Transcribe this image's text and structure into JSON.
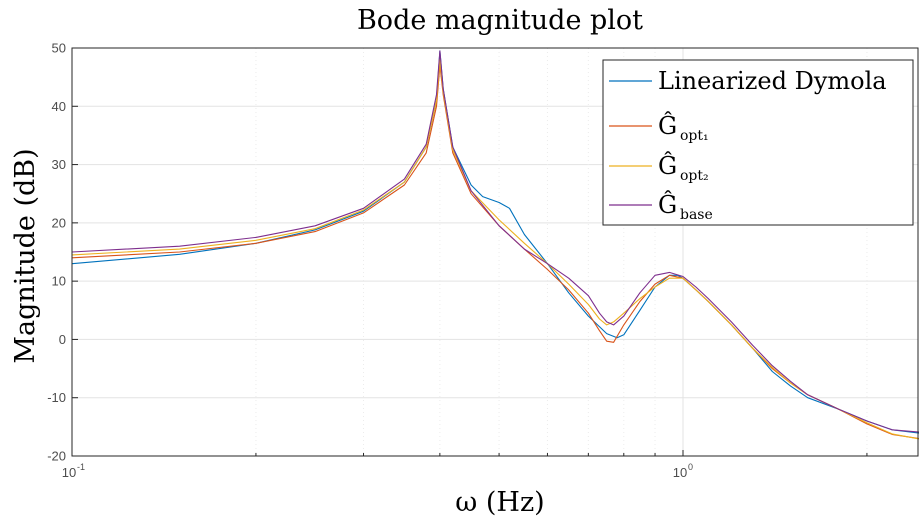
{
  "chart_data": {
    "type": "line",
    "title": "Bode magnitude plot",
    "xlabel": "ω (Hz)",
    "ylabel": "Magnitude (dB)",
    "xscale": "log",
    "xlim": [
      0.1,
      2.5
    ],
    "ylim": [
      -20,
      50
    ],
    "yticks": [
      -20,
      -10,
      0,
      10,
      20,
      30,
      40,
      50
    ],
    "ytick_labels": [
      "-20",
      "-10",
      "0",
      "10",
      "20",
      "30",
      "40",
      "50"
    ],
    "xticks": [
      {
        "value": 0.1,
        "base": "10",
        "exp": "-1"
      },
      {
        "value": 1.0,
        "base": "10",
        "exp": "0"
      }
    ],
    "grid": true,
    "legend_position": "top-right",
    "series": [
      {
        "name": "Linearized Dymola",
        "color": "#0072BD",
        "x": [
          0.1,
          0.15,
          0.2,
          0.25,
          0.3,
          0.35,
          0.38,
          0.395,
          0.4,
          0.405,
          0.42,
          0.45,
          0.47,
          0.5,
          0.52,
          0.55,
          0.6,
          0.65,
          0.7,
          0.75,
          0.78,
          0.8,
          0.85,
          0.9,
          0.95,
          0.98,
          1.0,
          1.05,
          1.1,
          1.2,
          1.3,
          1.4,
          1.5,
          1.6,
          1.8,
          2.0,
          2.2,
          2.5
        ],
        "y": [
          13,
          14.6,
          16.5,
          18.8,
          22,
          27,
          33,
          41,
          49.5,
          43,
          33,
          26.5,
          24.5,
          23.5,
          22.5,
          18,
          13,
          8,
          4,
          1,
          0.3,
          0.8,
          5,
          9,
          11,
          11,
          10.5,
          8.5,
          6.5,
          2.5,
          -1.5,
          -5.5,
          -8,
          -10,
          -12,
          -14,
          -15.5,
          -16.2
        ]
      },
      {
        "name": "opt1",
        "color": "#D95319",
        "x": [
          0.1,
          0.15,
          0.2,
          0.25,
          0.3,
          0.35,
          0.38,
          0.395,
          0.4,
          0.405,
          0.42,
          0.45,
          0.5,
          0.55,
          0.6,
          0.65,
          0.7,
          0.73,
          0.75,
          0.77,
          0.8,
          0.85,
          0.9,
          0.95,
          1.0,
          1.05,
          1.1,
          1.2,
          1.3,
          1.4,
          1.5,
          1.6,
          1.8,
          2.0,
          2.2,
          2.5
        ],
        "y": [
          14,
          15,
          16.5,
          18.5,
          21.7,
          26.5,
          32,
          40,
          47,
          42,
          32,
          25,
          19.5,
          15.5,
          12,
          8.5,
          4.5,
          1.5,
          -0.3,
          -0.5,
          2.5,
          6.5,
          9.5,
          11,
          10.5,
          8.5,
          6.5,
          2.5,
          -1.5,
          -5,
          -7.5,
          -9.5,
          -12,
          -14.5,
          -16.3,
          -17.2
        ]
      },
      {
        "name": "opt2",
        "color": "#EDB120",
        "x": [
          0.1,
          0.15,
          0.2,
          0.25,
          0.3,
          0.35,
          0.38,
          0.395,
          0.4,
          0.405,
          0.42,
          0.45,
          0.5,
          0.55,
          0.6,
          0.65,
          0.7,
          0.73,
          0.75,
          0.77,
          0.8,
          0.85,
          0.9,
          0.95,
          1.0,
          1.05,
          1.1,
          1.2,
          1.3,
          1.4,
          1.5,
          1.6,
          1.8,
          2.0,
          2.2,
          2.5
        ],
        "y": [
          14.5,
          15.5,
          17,
          19,
          22.2,
          27,
          33,
          41,
          48,
          42.5,
          32.5,
          25.5,
          20.5,
          16.5,
          13,
          9.5,
          6,
          3.5,
          2.5,
          3,
          4.5,
          7,
          9,
          10.5,
          10.5,
          8.5,
          6.5,
          2.5,
          -1.5,
          -4.8,
          -7.5,
          -9.5,
          -12,
          -14.3,
          -16.2,
          -17.3
        ]
      },
      {
        "name": "base",
        "color": "#7E2F8E",
        "x": [
          0.1,
          0.15,
          0.2,
          0.25,
          0.3,
          0.35,
          0.38,
          0.395,
          0.4,
          0.405,
          0.42,
          0.45,
          0.5,
          0.55,
          0.6,
          0.65,
          0.7,
          0.73,
          0.75,
          0.77,
          0.8,
          0.85,
          0.9,
          0.95,
          1.0,
          1.05,
          1.1,
          1.2,
          1.3,
          1.4,
          1.5,
          1.6,
          1.8,
          2.0,
          2.2,
          2.5
        ],
        "y": [
          15,
          16,
          17.5,
          19.5,
          22.5,
          27.5,
          33.5,
          42,
          49.5,
          43,
          33,
          25.5,
          19.5,
          15.5,
          13,
          10.5,
          7.5,
          4.5,
          3,
          2.5,
          4,
          8,
          11,
          11.5,
          10.8,
          9,
          7,
          3,
          -1,
          -4.5,
          -7.2,
          -9.5,
          -12,
          -14,
          -15.5,
          -16
        ]
      }
    ],
    "legend": {
      "entries": [
        {
          "text": "Linearized Dymola",
          "sub": ""
        },
        {
          "text": "Ĝ",
          "sub": "opt₁"
        },
        {
          "text": "Ĝ",
          "sub": "opt₂"
        },
        {
          "text": "Ĝ",
          "sub": "base"
        }
      ]
    }
  }
}
